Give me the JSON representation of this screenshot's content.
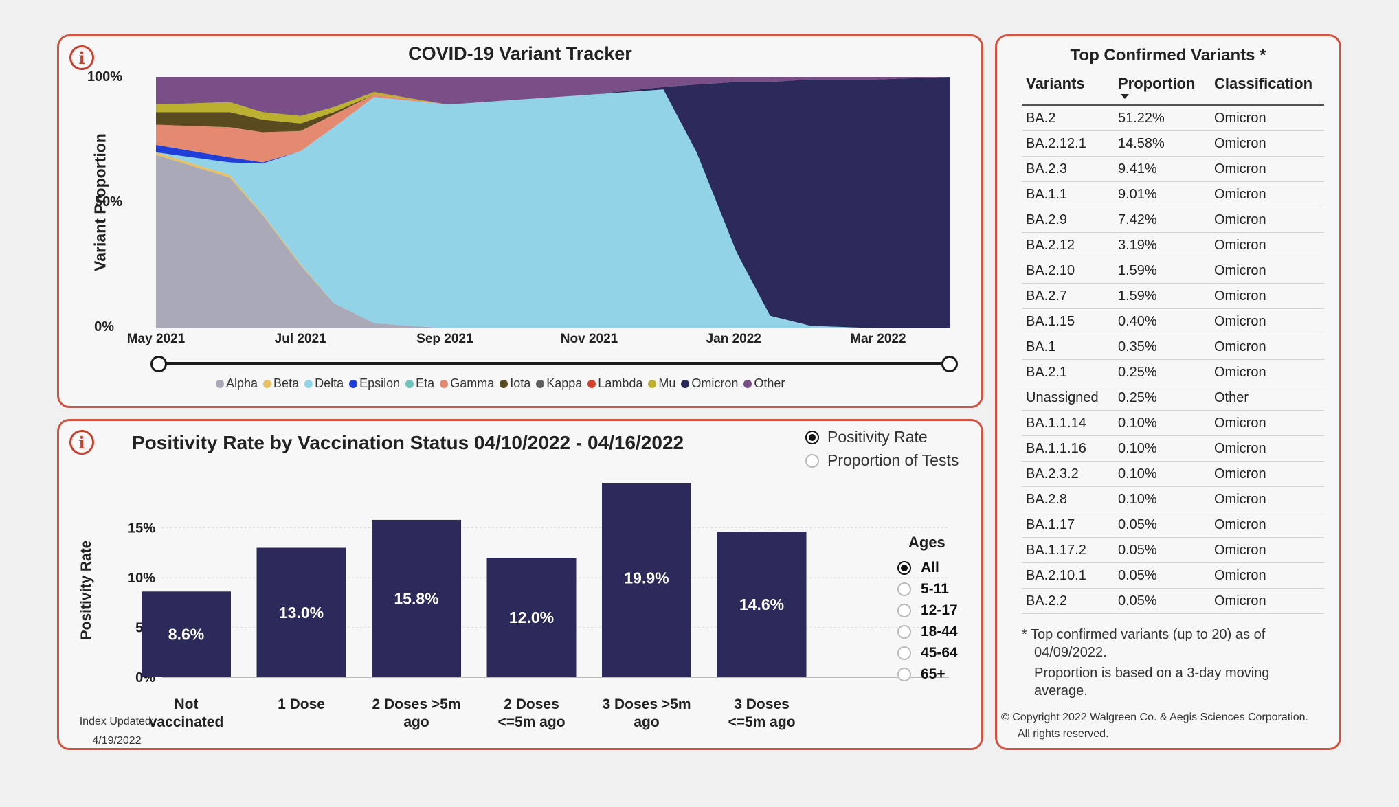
{
  "tracker": {
    "title": "COVID-19 Variant Tracker",
    "ylabel": "Variant Proportion",
    "yticks": [
      "100%",
      "50%",
      "0%"
    ],
    "xticks": [
      "May 2021",
      "Jul 2021",
      "Sep 2021",
      "Nov 2021",
      "Jan 2022",
      "Mar 2022"
    ],
    "legend": [
      {
        "name": "Alpha",
        "color": "#a9a9b8"
      },
      {
        "name": "Beta",
        "color": "#e8c060"
      },
      {
        "name": "Delta",
        "color": "#93d3e8"
      },
      {
        "name": "Epsilon",
        "color": "#1f3fd8"
      },
      {
        "name": "Eta",
        "color": "#6fc3b8"
      },
      {
        "name": "Gamma",
        "color": "#e38a70"
      },
      {
        "name": "Iota",
        "color": "#5a4a20"
      },
      {
        "name": "Kappa",
        "color": "#5f5f5f"
      },
      {
        "name": "Lambda",
        "color": "#d2402a"
      },
      {
        "name": "Mu",
        "color": "#bcb030"
      },
      {
        "name": "Omicron",
        "color": "#2b2a5a"
      },
      {
        "name": "Other",
        "color": "#7a4e86"
      }
    ]
  },
  "chart_data": [
    {
      "type": "area",
      "title": "COVID-19 Variant Tracker",
      "ylabel": "Variant Proportion",
      "ylim": [
        0,
        100
      ],
      "x": [
        "2021-05-01",
        "2021-06-01",
        "2021-06-15",
        "2021-07-01",
        "2021-07-15",
        "2021-08-01",
        "2021-09-01",
        "2021-10-01",
        "2021-11-01",
        "2021-12-01",
        "2021-12-15",
        "2022-01-01",
        "2022-01-15",
        "2022-02-01",
        "2022-03-01",
        "2022-04-01"
      ],
      "series": [
        {
          "name": "Alpha",
          "values": [
            69,
            60,
            45,
            25,
            10,
            2,
            0,
            0,
            0,
            0,
            0,
            0,
            0,
            0,
            0,
            0
          ]
        },
        {
          "name": "Beta",
          "values": [
            1,
            1,
            0.5,
            0.5,
            0,
            0,
            0,
            0,
            0,
            0,
            0,
            0,
            0,
            0,
            0,
            0
          ]
        },
        {
          "name": "Delta",
          "values": [
            0,
            5,
            20,
            45,
            70,
            90,
            89,
            91,
            93,
            95,
            70,
            30,
            5,
            1,
            0,
            0
          ]
        },
        {
          "name": "Epsilon",
          "values": [
            3,
            2,
            0.5,
            0,
            0,
            0,
            0,
            0,
            0,
            0,
            0,
            0,
            0,
            0,
            0,
            0
          ]
        },
        {
          "name": "Gamma",
          "values": [
            8,
            12,
            12,
            8,
            5,
            1,
            0,
            0,
            0,
            0,
            0,
            0,
            0,
            0,
            0,
            0
          ]
        },
        {
          "name": "Iota",
          "values": [
            5,
            6,
            5,
            3,
            1,
            0,
            0,
            0,
            0,
            0,
            0,
            0,
            0,
            0,
            0,
            0
          ]
        },
        {
          "name": "Mu",
          "values": [
            3,
            4,
            3,
            3,
            2,
            1,
            0,
            0,
            0,
            0,
            0,
            0,
            0,
            0,
            0,
            0
          ]
        },
        {
          "name": "Omicron",
          "values": [
            0,
            0,
            0,
            0,
            0,
            0,
            0,
            0,
            0,
            1,
            27,
            68,
            93,
            98,
            99,
            100
          ]
        },
        {
          "name": "Other",
          "values": [
            11,
            10,
            14,
            15.5,
            12,
            6,
            11,
            9,
            7,
            4,
            3,
            2,
            2,
            1,
            1,
            0
          ]
        }
      ]
    },
    {
      "type": "bar",
      "title": "Positivity Rate by Vaccination Status 04/10/2022 - 04/16/2022",
      "ylabel": "Positivity Rate",
      "ylim": [
        0,
        20
      ],
      "yticks": [
        "15%",
        "10%",
        "5%",
        "0%"
      ],
      "categories": [
        "Not vaccinated",
        "1 Dose",
        "2 Doses >5m ago",
        "2 Doses <=5m ago",
        "3 Doses >5m ago",
        "3 Doses <=5m ago"
      ],
      "values": [
        8.6,
        13.0,
        15.8,
        12.0,
        19.9,
        14.6
      ],
      "data_labels": [
        "8.6%",
        "13.0%",
        "15.8%",
        "12.0%",
        "19.9%",
        "14.6%"
      ],
      "bar_color": "#2b2a5a"
    }
  ],
  "positivity": {
    "title": "Positivity Rate by Vaccination Status 04/10/2022 - 04/16/2022",
    "ylabel": "Positivity Rate",
    "categories": [
      {
        "line1": "Not",
        "line2": "vaccinated"
      },
      {
        "line1": "1 Dose",
        "line2": ""
      },
      {
        "line1": "2 Doses >5m",
        "line2": "ago"
      },
      {
        "line1": "2 Doses",
        "line2": "<=5m ago"
      },
      {
        "line1": "3 Doses >5m",
        "line2": "ago"
      },
      {
        "line1": "3 Doses",
        "line2": "<=5m ago"
      }
    ],
    "metric_options": [
      "Positivity Rate",
      "Proportion of Tests"
    ],
    "metric_selected": "Positivity Rate",
    "ages_title": "Ages",
    "ages": [
      "All",
      "5-11",
      "12-17",
      "18-44",
      "45-64",
      "65+"
    ],
    "age_selected": "All",
    "index_updated_label": "Index Updated:",
    "index_updated_date": "4/19/2022"
  },
  "variants_table": {
    "title": "Top Confirmed Variants *",
    "headers": [
      "Variants",
      "Proportion",
      "Classification"
    ],
    "rows": [
      [
        "BA.2",
        "51.22%",
        "Omicron"
      ],
      [
        "BA.2.12.1",
        "14.58%",
        "Omicron"
      ],
      [
        "BA.2.3",
        "9.41%",
        "Omicron"
      ],
      [
        "BA.1.1",
        "9.01%",
        "Omicron"
      ],
      [
        "BA.2.9",
        "7.42%",
        "Omicron"
      ],
      [
        "BA.2.12",
        "3.19%",
        "Omicron"
      ],
      [
        "BA.2.10",
        "1.59%",
        "Omicron"
      ],
      [
        "BA.2.7",
        "1.59%",
        "Omicron"
      ],
      [
        "BA.1.15",
        "0.40%",
        "Omicron"
      ],
      [
        "BA.1",
        "0.35%",
        "Omicron"
      ],
      [
        "BA.2.1",
        "0.25%",
        "Omicron"
      ],
      [
        "Unassigned",
        "0.25%",
        "Other"
      ],
      [
        "BA.1.1.14",
        "0.10%",
        "Omicron"
      ],
      [
        "BA.1.1.16",
        "0.10%",
        "Omicron"
      ],
      [
        "BA.2.3.2",
        "0.10%",
        "Omicron"
      ],
      [
        "BA.2.8",
        "0.10%",
        "Omicron"
      ],
      [
        "BA.1.17",
        "0.05%",
        "Omicron"
      ],
      [
        "BA.1.17.2",
        "0.05%",
        "Omicron"
      ],
      [
        "BA.2.10.1",
        "0.05%",
        "Omicron"
      ],
      [
        "BA.2.2",
        "0.05%",
        "Omicron"
      ]
    ],
    "note_line1": "* Top confirmed variants (up to 20) as of",
    "note_line2": "04/09/2022.",
    "note_line3": "Proportion is based on a 3-day moving",
    "note_line4": "average.",
    "copyright_line1": "© Copyright 2022 Walgreen Co. & Aegis Sciences Corporation.",
    "copyright_line2": "All rights reserved."
  }
}
